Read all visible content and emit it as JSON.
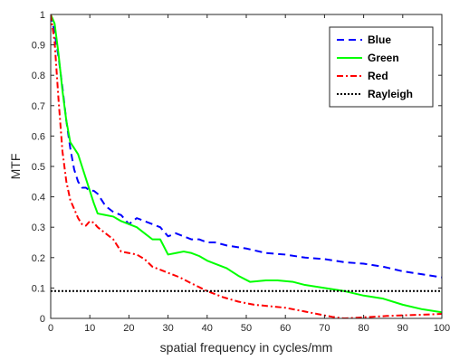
{
  "chart_data": {
    "type": "line",
    "title": "",
    "xlabel": "spatial frequency in cycles/mm",
    "ylabel": "MTF",
    "xlim": [
      0,
      100
    ],
    "ylim": [
      0,
      1
    ],
    "xticks": [
      0,
      10,
      20,
      30,
      40,
      50,
      60,
      70,
      80,
      90,
      100
    ],
    "yticks": [
      0,
      0.1,
      0.2,
      0.3,
      0.4,
      0.5,
      0.6,
      0.7,
      0.8,
      0.9,
      1
    ],
    "grid": false,
    "legend_position": "top-right",
    "series": [
      {
        "name": "Blue",
        "color": "#0000ff",
        "style": "dashed",
        "x": [
          0,
          1,
          2,
          3,
          4,
          5,
          6,
          7,
          8,
          9,
          10,
          11,
          12,
          14,
          16,
          18,
          20,
          22,
          24,
          26,
          28,
          30,
          32,
          34,
          36,
          38,
          40,
          42,
          45,
          50,
          55,
          60,
          65,
          70,
          75,
          80,
          85,
          90,
          95,
          100
        ],
        "y": [
          1.0,
          0.94,
          0.86,
          0.76,
          0.65,
          0.56,
          0.49,
          0.45,
          0.43,
          0.43,
          0.42,
          0.42,
          0.41,
          0.37,
          0.35,
          0.34,
          0.31,
          0.33,
          0.32,
          0.31,
          0.3,
          0.27,
          0.28,
          0.27,
          0.26,
          0.26,
          0.25,
          0.25,
          0.24,
          0.23,
          0.215,
          0.21,
          0.2,
          0.195,
          0.185,
          0.18,
          0.17,
          0.155,
          0.145,
          0.135
        ]
      },
      {
        "name": "Green",
        "color": "#00ff00",
        "style": "solid",
        "x": [
          0,
          1,
          2,
          3,
          4,
          5,
          6,
          7,
          8,
          9,
          10,
          11,
          12,
          14,
          16,
          18,
          20,
          22,
          24,
          26,
          28,
          30,
          32,
          34,
          36,
          38,
          40,
          42,
          45,
          48,
          51,
          55,
          58,
          62,
          65,
          70,
          75,
          80,
          85,
          90,
          95,
          100
        ],
        "y": [
          1.0,
          0.97,
          0.87,
          0.75,
          0.65,
          0.58,
          0.56,
          0.54,
          0.5,
          0.46,
          0.42,
          0.38,
          0.345,
          0.34,
          0.335,
          0.32,
          0.31,
          0.3,
          0.28,
          0.26,
          0.26,
          0.21,
          0.215,
          0.22,
          0.215,
          0.205,
          0.19,
          0.18,
          0.165,
          0.14,
          0.12,
          0.125,
          0.125,
          0.12,
          0.11,
          0.1,
          0.09,
          0.075,
          0.065,
          0.045,
          0.03,
          0.02
        ]
      },
      {
        "name": "Red",
        "color": "#ff0000",
        "style": "dashdot",
        "x": [
          0,
          1,
          2,
          3,
          4,
          5,
          6,
          7,
          8,
          9,
          10,
          11,
          12,
          14,
          16,
          18,
          20,
          22,
          24,
          26,
          28,
          30,
          33,
          36,
          40,
          44,
          48,
          52,
          56,
          60,
          64,
          68,
          72,
          75,
          78,
          82,
          86,
          90,
          95,
          100
        ],
        "y": [
          1.0,
          0.91,
          0.72,
          0.55,
          0.45,
          0.39,
          0.36,
          0.33,
          0.31,
          0.305,
          0.32,
          0.315,
          0.3,
          0.28,
          0.26,
          0.22,
          0.215,
          0.21,
          0.195,
          0.17,
          0.16,
          0.15,
          0.135,
          0.115,
          0.09,
          0.07,
          0.055,
          0.045,
          0.04,
          0.035,
          0.025,
          0.015,
          0.005,
          0.0,
          0.002,
          0.005,
          0.008,
          0.01,
          0.012,
          0.015
        ]
      },
      {
        "name": "Rayleigh",
        "color": "#000000",
        "style": "dotted",
        "x": [
          0,
          100
        ],
        "y": [
          0.09,
          0.09
        ]
      }
    ]
  }
}
